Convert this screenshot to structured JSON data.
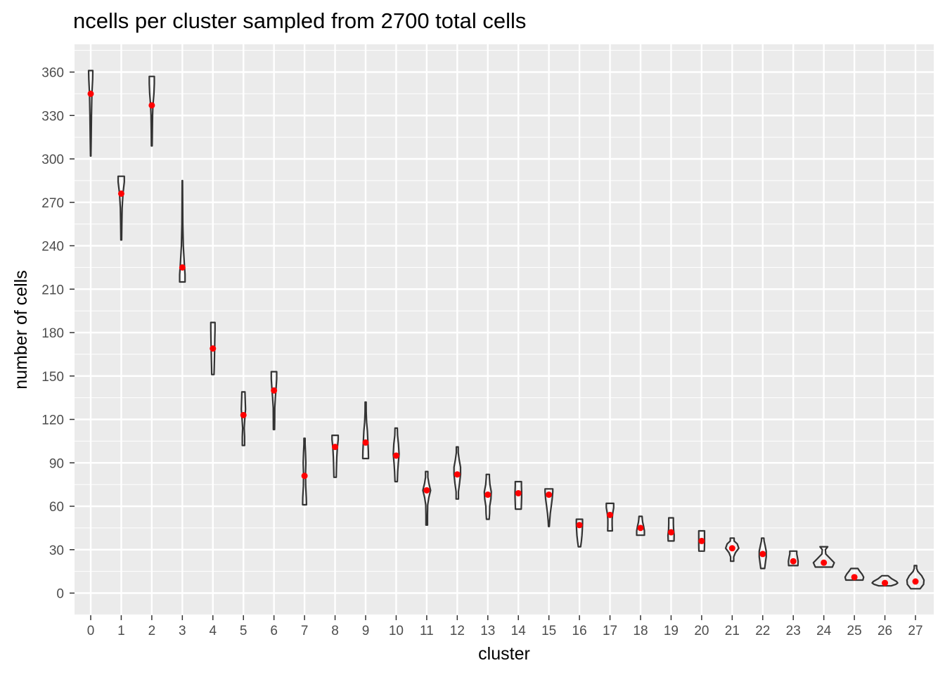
{
  "chart_data": {
    "type": "violin",
    "title": "ncells per cluster sampled from 2700 total cells",
    "xlabel": "cluster",
    "ylabel": "number of cells",
    "categories": [
      "0",
      "1",
      "2",
      "3",
      "4",
      "5",
      "6",
      "7",
      "8",
      "9",
      "10",
      "11",
      "12",
      "13",
      "14",
      "15",
      "16",
      "17",
      "18",
      "19",
      "20",
      "21",
      "22",
      "23",
      "24",
      "25",
      "26",
      "27"
    ],
    "ylim": [
      -17,
      380
    ],
    "yticks": [
      0,
      30,
      60,
      90,
      120,
      150,
      180,
      210,
      240,
      270,
      300,
      330,
      360
    ],
    "grid": true,
    "legend": "none",
    "colors": {
      "panel": "#ebebeb",
      "grid": "#ffffff",
      "violin_stroke": "#333333",
      "point": "#ff0000",
      "tick_text": "#4d4d4d"
    },
    "series": [
      {
        "cluster": "0",
        "min": 302,
        "max": 361,
        "mean": 345,
        "profile": [
          [
            302,
            0.05
          ],
          [
            315,
            0.12
          ],
          [
            330,
            0.2
          ],
          [
            345,
            0.3
          ],
          [
            355,
            0.5
          ],
          [
            361,
            0.55
          ]
        ]
      },
      {
        "cluster": "1",
        "min": 244,
        "max": 288,
        "mean": 276,
        "profile": [
          [
            244,
            0.1
          ],
          [
            255,
            0.15
          ],
          [
            266,
            0.22
          ],
          [
            276,
            0.45
          ],
          [
            284,
            0.8
          ],
          [
            288,
            0.8
          ]
        ]
      },
      {
        "cluster": "2",
        "min": 309,
        "max": 357,
        "mean": 337,
        "profile": [
          [
            309,
            0.1
          ],
          [
            320,
            0.15
          ],
          [
            330,
            0.2
          ],
          [
            337,
            0.3
          ],
          [
            345,
            0.55
          ],
          [
            352,
            0.65
          ],
          [
            357,
            0.65
          ]
        ]
      },
      {
        "cluster": "3",
        "min": 215,
        "max": 285,
        "mean": 225,
        "profile": [
          [
            215,
            0.7
          ],
          [
            220,
            0.7
          ],
          [
            228,
            0.5
          ],
          [
            240,
            0.25
          ],
          [
            255,
            0.12
          ],
          [
            270,
            0.08
          ],
          [
            285,
            0.05
          ]
        ]
      },
      {
        "cluster": "4",
        "min": 151,
        "max": 187,
        "mean": 169,
        "profile": [
          [
            151,
            0.3
          ],
          [
            156,
            0.35
          ],
          [
            162,
            0.4
          ],
          [
            169,
            0.45
          ],
          [
            176,
            0.5
          ],
          [
            182,
            0.55
          ],
          [
            187,
            0.55
          ]
        ]
      },
      {
        "cluster": "5",
        "min": 102,
        "max": 139,
        "mean": 123,
        "profile": [
          [
            102,
            0.3
          ],
          [
            108,
            0.3
          ],
          [
            114,
            0.2
          ],
          [
            120,
            0.35
          ],
          [
            127,
            0.55
          ],
          [
            134,
            0.45
          ],
          [
            139,
            0.4
          ]
        ]
      },
      {
        "cluster": "6",
        "min": 113,
        "max": 153,
        "mean": 140,
        "profile": [
          [
            113,
            0.15
          ],
          [
            120,
            0.18
          ],
          [
            128,
            0.2
          ],
          [
            135,
            0.35
          ],
          [
            142,
            0.55
          ],
          [
            148,
            0.7
          ],
          [
            153,
            0.7
          ]
        ]
      },
      {
        "cluster": "7",
        "min": 61,
        "max": 107,
        "mean": 81,
        "profile": [
          [
            61,
            0.5
          ],
          [
            66,
            0.45
          ],
          [
            74,
            0.3
          ],
          [
            82,
            0.25
          ],
          [
            90,
            0.35
          ],
          [
            97,
            0.25
          ],
          [
            103,
            0.15
          ],
          [
            107,
            0.15
          ]
        ]
      },
      {
        "cluster": "8",
        "min": 80,
        "max": 109,
        "mean": 101,
        "profile": [
          [
            80,
            0.3
          ],
          [
            86,
            0.35
          ],
          [
            94,
            0.45
          ],
          [
            101,
            0.6
          ],
          [
            106,
            0.8
          ],
          [
            109,
            0.8
          ]
        ]
      },
      {
        "cluster": "9",
        "min": 93,
        "max": 132,
        "mean": 104,
        "profile": [
          [
            93,
            0.75
          ],
          [
            98,
            0.7
          ],
          [
            104,
            0.6
          ],
          [
            112,
            0.45
          ],
          [
            118,
            0.25
          ],
          [
            125,
            0.15
          ],
          [
            132,
            0.12
          ]
        ]
      },
      {
        "cluster": "10",
        "min": 77,
        "max": 114,
        "mean": 95,
        "profile": [
          [
            77,
            0.3
          ],
          [
            84,
            0.4
          ],
          [
            90,
            0.55
          ],
          [
            96,
            0.75
          ],
          [
            103,
            0.6
          ],
          [
            109,
            0.35
          ],
          [
            114,
            0.3
          ]
        ]
      },
      {
        "cluster": "11",
        "min": 47,
        "max": 84,
        "mean": 71,
        "profile": [
          [
            47,
            0.2
          ],
          [
            54,
            0.2
          ],
          [
            61,
            0.25
          ],
          [
            66,
            0.55
          ],
          [
            71,
            1.0
          ],
          [
            76,
            0.55
          ],
          [
            80,
            0.3
          ],
          [
            84,
            0.3
          ]
        ]
      },
      {
        "cluster": "12",
        "min": 65,
        "max": 101,
        "mean": 82,
        "profile": [
          [
            65,
            0.3
          ],
          [
            70,
            0.3
          ],
          [
            76,
            0.6
          ],
          [
            82,
            0.85
          ],
          [
            87,
            0.85
          ],
          [
            92,
            0.5
          ],
          [
            97,
            0.25
          ],
          [
            101,
            0.25
          ]
        ]
      },
      {
        "cluster": "13",
        "min": 51,
        "max": 82,
        "mean": 68,
        "profile": [
          [
            51,
            0.35
          ],
          [
            55,
            0.45
          ],
          [
            60,
            0.5
          ],
          [
            65,
            0.8
          ],
          [
            70,
            0.9
          ],
          [
            75,
            0.55
          ],
          [
            80,
            0.4
          ],
          [
            82,
            0.4
          ]
        ]
      },
      {
        "cluster": "14",
        "min": 58,
        "max": 77,
        "mean": 69,
        "profile": [
          [
            58,
            0.75
          ],
          [
            62,
            0.8
          ],
          [
            66,
            0.85
          ],
          [
            70,
            0.85
          ],
          [
            74,
            0.8
          ],
          [
            77,
            0.8
          ]
        ]
      },
      {
        "cluster": "15",
        "min": 46,
        "max": 72,
        "mean": 68,
        "profile": [
          [
            46,
            0.1
          ],
          [
            50,
            0.2
          ],
          [
            55,
            0.35
          ],
          [
            60,
            0.6
          ],
          [
            65,
            0.85
          ],
          [
            70,
            1.0
          ],
          [
            72,
            1.0
          ]
        ]
      },
      {
        "cluster": "16",
        "min": 32,
        "max": 51,
        "mean": 47,
        "profile": [
          [
            32,
            0.3
          ],
          [
            36,
            0.5
          ],
          [
            40,
            0.65
          ],
          [
            44,
            0.75
          ],
          [
            48,
            0.8
          ],
          [
            51,
            0.8
          ]
        ]
      },
      {
        "cluster": "17",
        "min": 43,
        "max": 62,
        "mean": 54,
        "profile": [
          [
            43,
            0.6
          ],
          [
            47,
            0.55
          ],
          [
            51,
            0.55
          ],
          [
            55,
            0.7
          ],
          [
            59,
            0.95
          ],
          [
            62,
            0.95
          ]
        ]
      },
      {
        "cluster": "18",
        "min": 40,
        "max": 53,
        "mean": 45,
        "profile": [
          [
            40,
            1.0
          ],
          [
            43,
            1.0
          ],
          [
            46,
            0.8
          ],
          [
            49,
            0.55
          ],
          [
            51,
            0.45
          ],
          [
            53,
            0.4
          ]
        ]
      },
      {
        "cluster": "19",
        "min": 36,
        "max": 52,
        "mean": 42,
        "profile": [
          [
            36,
            0.75
          ],
          [
            40,
            0.8
          ],
          [
            44,
            0.65
          ],
          [
            48,
            0.6
          ],
          [
            52,
            0.6
          ]
        ]
      },
      {
        "cluster": "20",
        "min": 29,
        "max": 43,
        "mean": 36,
        "profile": [
          [
            29,
            0.7
          ],
          [
            33,
            0.75
          ],
          [
            37,
            0.75
          ],
          [
            40,
            0.75
          ],
          [
            43,
            0.75
          ]
        ]
      },
      {
        "cluster": "21",
        "min": 22,
        "max": 38,
        "mean": 31,
        "profile": [
          [
            22,
            0.4
          ],
          [
            25,
            0.4
          ],
          [
            28,
            0.85
          ],
          [
            31,
            1.7
          ],
          [
            34,
            1.3
          ],
          [
            36,
            0.5
          ],
          [
            38,
            0.5
          ]
        ]
      },
      {
        "cluster": "22",
        "min": 17,
        "max": 38,
        "mean": 27,
        "profile": [
          [
            17,
            0.5
          ],
          [
            21,
            0.7
          ],
          [
            25,
            0.9
          ],
          [
            29,
            0.9
          ],
          [
            33,
            0.6
          ],
          [
            36,
            0.35
          ],
          [
            38,
            0.3
          ]
        ]
      },
      {
        "cluster": "23",
        "min": 19,
        "max": 29,
        "mean": 22,
        "profile": [
          [
            19,
            1.2
          ],
          [
            22,
            1.25
          ],
          [
            25,
            1.05
          ],
          [
            27,
            0.9
          ],
          [
            29,
            0.9
          ]
        ]
      },
      {
        "cluster": "24",
        "min": 18,
        "max": 32,
        "mean": 21,
        "profile": [
          [
            18,
            2.2
          ],
          [
            21,
            2.7
          ],
          [
            24,
            1.6
          ],
          [
            27,
            0.5
          ],
          [
            30,
            0.4
          ],
          [
            32,
            1.0
          ]
        ]
      },
      {
        "cluster": "25",
        "min": 9,
        "max": 17,
        "mean": 11,
        "profile": [
          [
            9,
            2.2
          ],
          [
            11,
            2.4
          ],
          [
            13,
            2.0
          ],
          [
            15,
            1.4
          ],
          [
            17,
            0.9
          ]
        ]
      },
      {
        "cluster": "26",
        "min": 5,
        "max": 12,
        "mean": 7,
        "profile": [
          [
            5,
            1.6
          ],
          [
            6,
            2.8
          ],
          [
            7,
            3.3
          ],
          [
            8,
            3.0
          ],
          [
            10,
            1.7
          ],
          [
            12,
            0.8
          ]
        ]
      },
      {
        "cluster": "27",
        "min": 3,
        "max": 19,
        "mean": 8,
        "profile": [
          [
            3,
            1.2
          ],
          [
            6,
            2.1
          ],
          [
            9,
            2.2
          ],
          [
            12,
            1.6
          ],
          [
            15,
            0.6
          ],
          [
            17,
            0.3
          ],
          [
            19,
            0.3
          ]
        ]
      }
    ]
  }
}
